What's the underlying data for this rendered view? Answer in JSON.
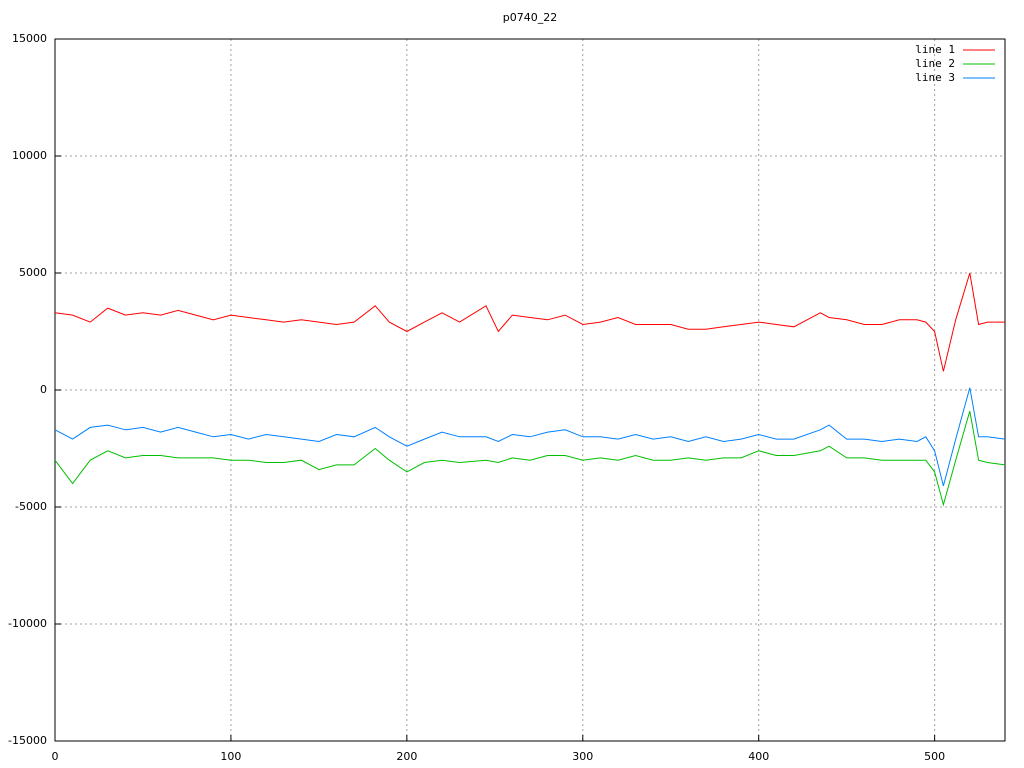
{
  "chart_data": {
    "type": "line",
    "title": "p0740_22",
    "x": [
      0,
      10,
      20,
      30,
      40,
      50,
      60,
      70,
      80,
      90,
      100,
      110,
      120,
      130,
      140,
      150,
      160,
      170,
      182,
      190,
      200,
      210,
      220,
      230,
      245,
      252,
      260,
      270,
      280,
      290,
      300,
      310,
      320,
      330,
      340,
      350,
      360,
      370,
      380,
      390,
      400,
      410,
      420,
      435,
      440,
      450,
      460,
      470,
      480,
      490,
      495,
      500,
      505,
      512,
      520,
      525,
      530,
      540
    ],
    "series": [
      {
        "name": "line 1",
        "color": "#ff0000",
        "values": [
          3300,
          3200,
          2900,
          3500,
          3200,
          3300,
          3200,
          3400,
          3200,
          3000,
          3200,
          3100,
          3000,
          2900,
          3000,
          2900,
          2800,
          2900,
          3600,
          2900,
          2500,
          2900,
          3300,
          2900,
          3600,
          2500,
          3200,
          3100,
          3000,
          3200,
          2800,
          2900,
          3100,
          2800,
          2800,
          2800,
          2600,
          2600,
          2700,
          2800,
          2900,
          2800,
          2700,
          3300,
          3100,
          3000,
          2800,
          2800,
          3000,
          3000,
          2900,
          2500,
          800,
          3000,
          5000,
          2800,
          2900,
          2900
        ]
      },
      {
        "name": "line 2",
        "color": "#00c000",
        "values": [
          -3000,
          -4000,
          -3000,
          -2600,
          -2900,
          -2800,
          -2800,
          -2900,
          -2900,
          -2900,
          -3000,
          -3000,
          -3100,
          -3100,
          -3000,
          -3400,
          -3200,
          -3200,
          -2500,
          -3000,
          -3500,
          -3100,
          -3000,
          -3100,
          -3000,
          -3100,
          -2900,
          -3000,
          -2800,
          -2800,
          -3000,
          -2900,
          -3000,
          -2800,
          -3000,
          -3000,
          -2900,
          -3000,
          -2900,
          -2900,
          -2600,
          -2800,
          -2800,
          -2600,
          -2400,
          -2900,
          -2900,
          -3000,
          -3000,
          -3000,
          -3000,
          -3500,
          -4900,
          -3000,
          -900,
          -3000,
          -3100,
          -3200
        ]
      },
      {
        "name": "line 3",
        "color": "#0080ff",
        "values": [
          -1700,
          -2100,
          -1600,
          -1500,
          -1700,
          -1600,
          -1800,
          -1600,
          -1800,
          -2000,
          -1900,
          -2100,
          -1900,
          -2000,
          -2100,
          -2200,
          -1900,
          -2000,
          -1600,
          -2000,
          -2400,
          -2100,
          -1800,
          -2000,
          -2000,
          -2200,
          -1900,
          -2000,
          -1800,
          -1700,
          -2000,
          -2000,
          -2100,
          -1900,
          -2100,
          -2000,
          -2200,
          -2000,
          -2200,
          -2100,
          -1900,
          -2100,
          -2100,
          -1700,
          -1500,
          -2100,
          -2100,
          -2200,
          -2100,
          -2200,
          -2000,
          -2600,
          -4100,
          -2100,
          100,
          -2000,
          -2000,
          -2100
        ]
      }
    ],
    "xlim": [
      0,
      540
    ],
    "xticks": [
      0,
      100,
      200,
      300,
      400,
      500
    ],
    "ylim": [
      -15000,
      15000
    ],
    "yticks": [
      -15000,
      -10000,
      -5000,
      0,
      5000,
      10000,
      15000
    ],
    "grid": true,
    "legend": "top-right"
  }
}
